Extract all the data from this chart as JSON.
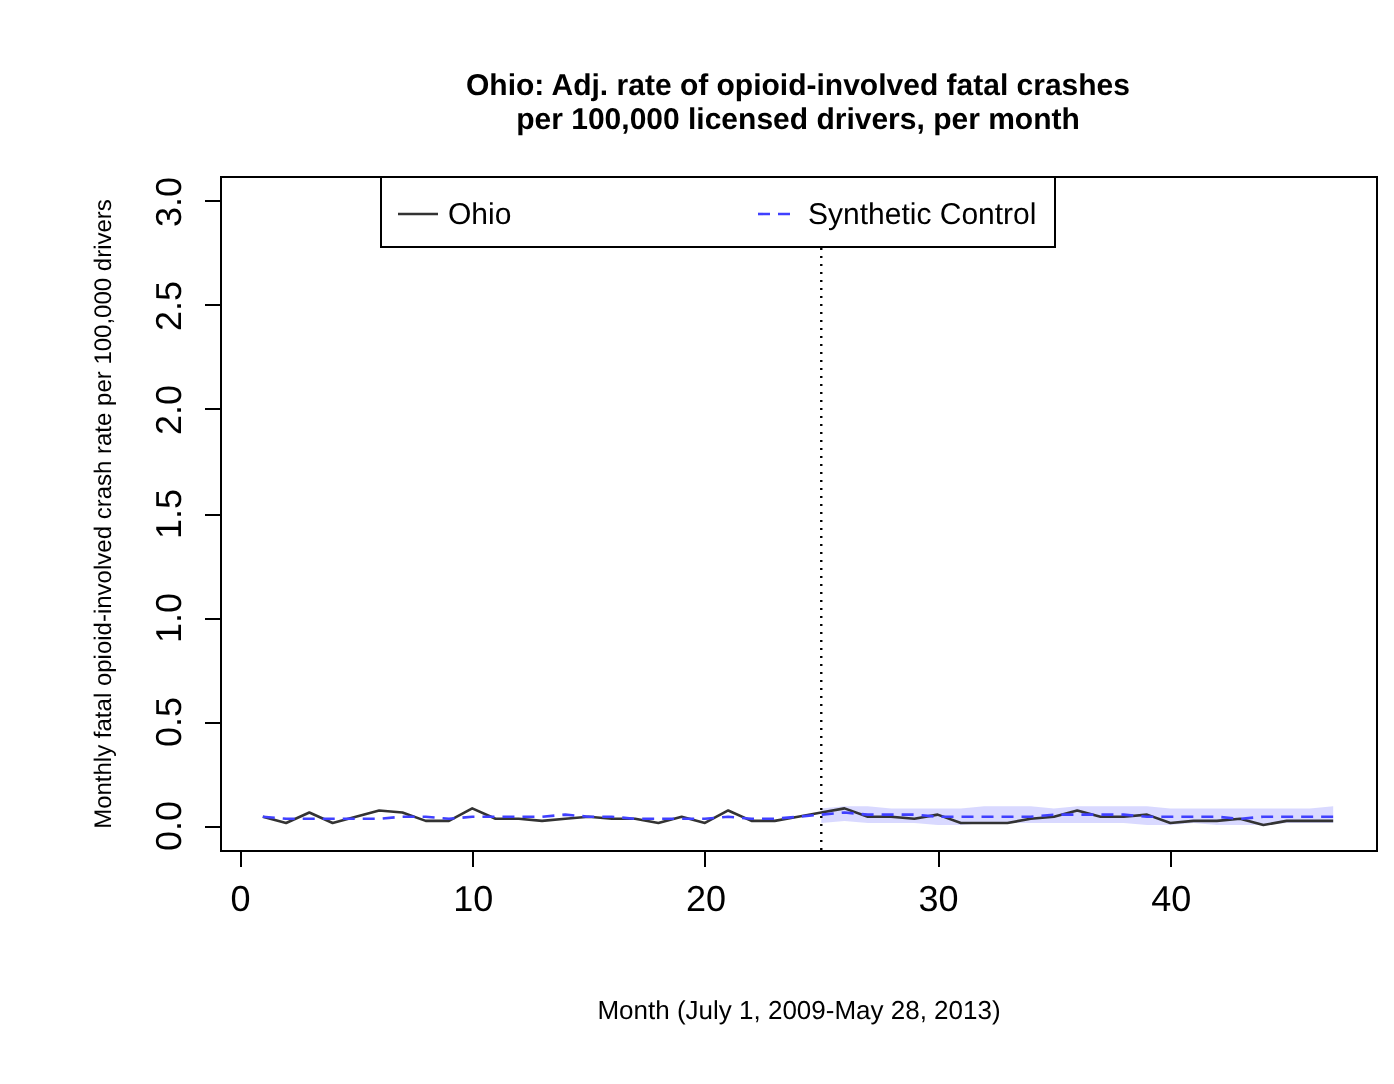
{
  "chart_data": {
    "type": "line",
    "title": "Ohio: Adj. rate of opioid-involved fatal crashes\nper 100,000 licensed drivers,  per month",
    "xlabel": "Month (July 1, 2009-May 28, 2013)",
    "ylabel": "Monthly fatal opioid-involved crash rate per 100,000 drivers",
    "x": [
      1,
      2,
      3,
      4,
      5,
      6,
      7,
      8,
      9,
      10,
      11,
      12,
      13,
      14,
      15,
      16,
      17,
      18,
      19,
      20,
      21,
      22,
      23,
      24,
      25,
      26,
      27,
      28,
      29,
      30,
      31,
      32,
      33,
      34,
      35,
      36,
      37,
      38,
      39,
      40,
      41,
      42,
      43,
      44,
      45,
      46,
      47
    ],
    "xlim": [
      -0.84,
      48.84
    ],
    "xticks": [
      0,
      10,
      20,
      30,
      40
    ],
    "ylim": [
      -0.12,
      3.12
    ],
    "yticks": [
      {
        "value": 0,
        "label": "0.0"
      },
      {
        "value": 0.5,
        "label": "0.5"
      },
      {
        "value": 1,
        "label": "1.0"
      },
      {
        "value": 1.5,
        "label": "1.5"
      },
      {
        "value": 2,
        "label": "2.0"
      },
      {
        "value": 2.5,
        "label": "2.5"
      },
      {
        "value": 3,
        "label": "3.0"
      }
    ],
    "series": [
      {
        "name": "Ohio",
        "color": "#333333",
        "line_style": "solid",
        "values": [
          0.04,
          0.01,
          0.06,
          0.01,
          0.04,
          0.07,
          0.06,
          0.02,
          0.02,
          0.08,
          0.03,
          0.03,
          0.02,
          0.03,
          0.04,
          0.03,
          0.03,
          0.01,
          0.04,
          0.01,
          0.07,
          0.02,
          0.02,
          0.04,
          0.06,
          0.08,
          0.04,
          0.04,
          0.03,
          0.05,
          0.01,
          0.01,
          0.01,
          0.03,
          0.04,
          0.07,
          0.04,
          0.04,
          0.05,
          0.01,
          0.02,
          0.02,
          0.03,
          0.0,
          0.02,
          0.02,
          0.02
        ]
      },
      {
        "name": "Synthetic Control",
        "color": "#4040ff",
        "line_style": "dashed",
        "values": [
          0.04,
          0.03,
          0.03,
          0.03,
          0.03,
          0.03,
          0.04,
          0.04,
          0.03,
          0.04,
          0.04,
          0.04,
          0.04,
          0.05,
          0.04,
          0.04,
          0.03,
          0.03,
          0.03,
          0.03,
          0.04,
          0.03,
          0.03,
          0.04,
          0.05,
          0.06,
          0.05,
          0.05,
          0.05,
          0.04,
          0.04,
          0.04,
          0.04,
          0.04,
          0.05,
          0.05,
          0.05,
          0.05,
          0.04,
          0.04,
          0.04,
          0.04,
          0.03,
          0.04,
          0.04,
          0.04,
          0.04
        ],
        "lower": [
          null,
          null,
          null,
          null,
          null,
          null,
          null,
          null,
          null,
          null,
          null,
          null,
          null,
          null,
          null,
          null,
          null,
          null,
          null,
          null,
          null,
          null,
          null,
          null,
          0.01,
          0.02,
          0.01,
          0.01,
          0.01,
          0.0,
          0.0,
          0.01,
          0.01,
          0.01,
          0.01,
          0.01,
          0.01,
          0.01,
          0.0,
          0.0,
          0.01,
          0.0,
          0.0,
          0.0,
          0.01,
          0.01,
          0.01
        ],
        "upper": [
          null,
          null,
          null,
          null,
          null,
          null,
          null,
          null,
          null,
          null,
          null,
          null,
          null,
          null,
          null,
          null,
          null,
          null,
          null,
          null,
          null,
          null,
          null,
          null,
          0.08,
          0.09,
          0.09,
          0.08,
          0.08,
          0.08,
          0.08,
          0.09,
          0.09,
          0.09,
          0.08,
          0.09,
          0.09,
          0.09,
          0.09,
          0.08,
          0.08,
          0.08,
          0.08,
          0.08,
          0.08,
          0.08,
          0.09
        ]
      }
    ],
    "ref_lines": [
      {
        "axis": "x",
        "value": 25,
        "line_style": "dotted",
        "color": "#000000"
      }
    ],
    "legend": "top",
    "marker": "none"
  }
}
